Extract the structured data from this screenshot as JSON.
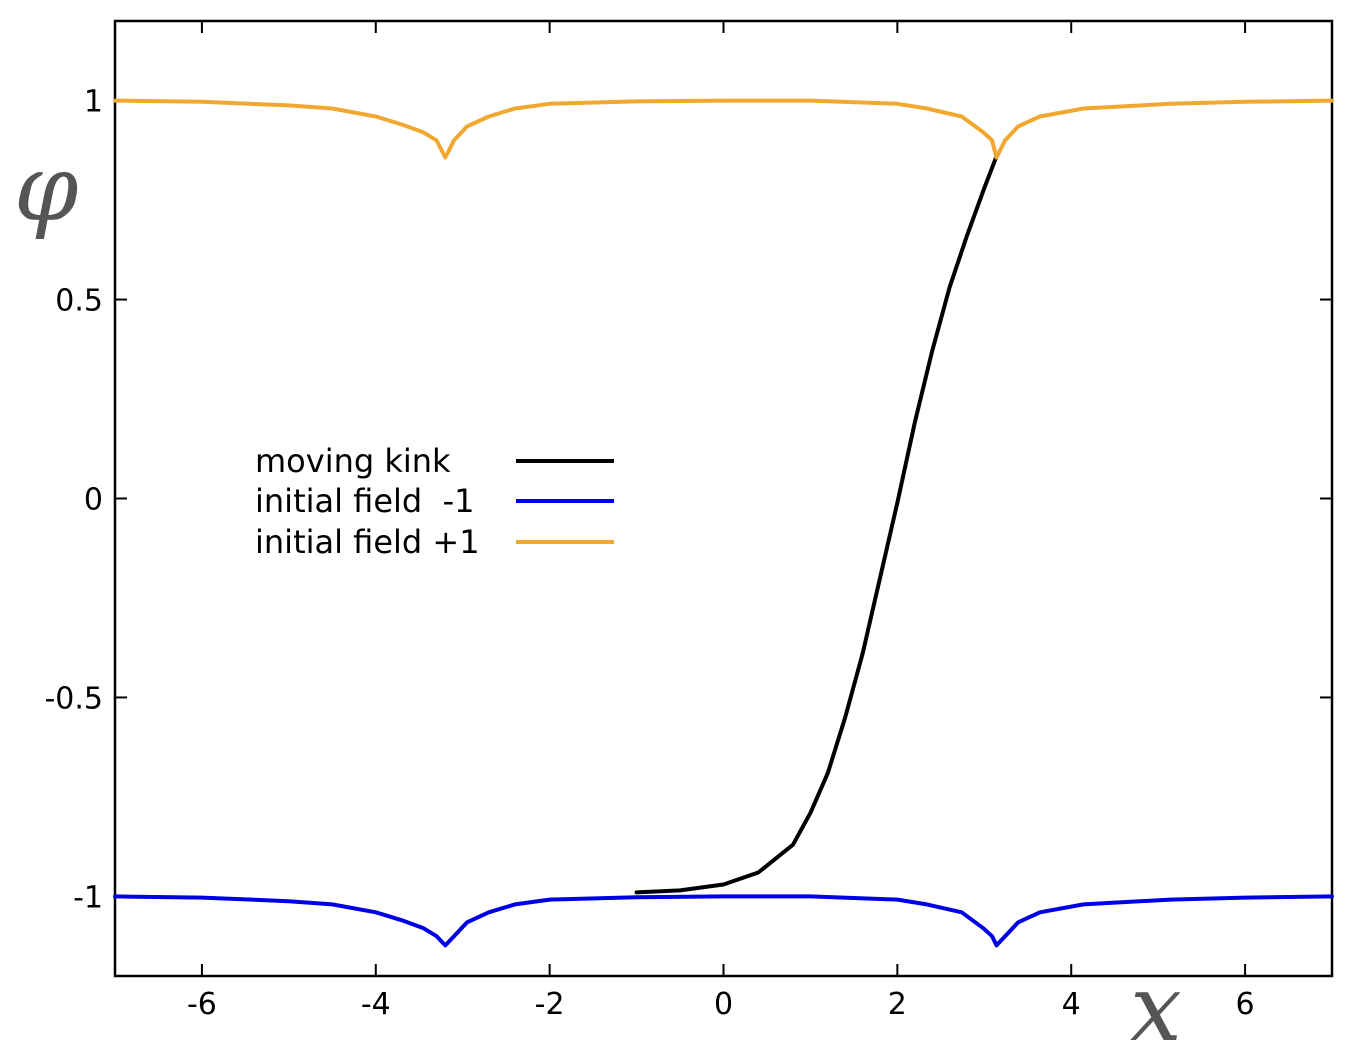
{
  "chart_data": {
    "type": "line",
    "title": "",
    "xlabel": "x",
    "ylabel": "φ",
    "xlim": [
      -7,
      7
    ],
    "ylim": [
      -1.2,
      1.2
    ],
    "xticks": [
      -6,
      -4,
      -2,
      0,
      2,
      4,
      6
    ],
    "yticks": [
      1,
      0.5,
      0,
      -0.5,
      -1
    ],
    "xtick_labels": [
      "-6",
      "-4",
      "-2",
      "0",
      "2",
      "4",
      "6"
    ],
    "ytick_labels": [
      "1",
      "0.5",
      "0",
      "-0.5",
      "-1"
    ],
    "grid": false,
    "legend_position": "middle-left",
    "series": [
      {
        "name": "moving kink",
        "color": "#000000",
        "x": [
          -1.0,
          -0.5,
          0.0,
          0.4,
          0.8,
          1.0,
          1.2,
          1.4,
          1.6,
          1.8,
          2.0,
          2.2,
          2.4,
          2.6,
          2.8,
          3.0,
          3.14
        ],
        "y": [
          -0.99,
          -0.985,
          -0.97,
          -0.94,
          -0.87,
          -0.79,
          -0.69,
          -0.55,
          -0.39,
          -0.2,
          -0.01,
          0.19,
          0.37,
          0.53,
          0.66,
          0.78,
          0.86
        ]
      },
      {
        "name": "initial field  -1",
        "color": "#0000e6",
        "x": [
          -7.0,
          -6.0,
          -5.0,
          -4.5,
          -4.0,
          -3.7,
          -3.45,
          -3.3,
          -3.2,
          -3.1,
          -2.95,
          -2.7,
          -2.4,
          -2.0,
          -1.0,
          0.0,
          1.0,
          2.0,
          2.34,
          2.74,
          2.99,
          3.09,
          3.14,
          3.24,
          3.39,
          3.64,
          4.14,
          5.14,
          6.0,
          7.0
        ],
        "y": [
          -1.0,
          -1.003,
          -1.012,
          -1.02,
          -1.04,
          -1.06,
          -1.08,
          -1.1,
          -1.123,
          -1.1,
          -1.065,
          -1.04,
          -1.02,
          -1.008,
          -1.002,
          -1.0,
          -1.0,
          -1.008,
          -1.02,
          -1.04,
          -1.08,
          -1.1,
          -1.123,
          -1.1,
          -1.065,
          -1.04,
          -1.02,
          -1.008,
          -1.003,
          -1.0
        ]
      },
      {
        "name": "initial field +1",
        "color": "#f0a830",
        "x": [
          -7.0,
          -6.0,
          -5.0,
          -4.5,
          -4.0,
          -3.7,
          -3.45,
          -3.3,
          -3.2,
          -3.1,
          -2.95,
          -2.7,
          -2.4,
          -2.0,
          -1.0,
          0.0,
          1.0,
          2.0,
          2.34,
          2.74,
          2.99,
          3.09,
          3.14,
          3.24,
          3.39,
          3.64,
          4.14,
          5.14,
          6.0,
          7.0
        ],
        "y": [
          1.0,
          0.997,
          0.988,
          0.98,
          0.96,
          0.94,
          0.92,
          0.9,
          0.857,
          0.9,
          0.935,
          0.96,
          0.98,
          0.992,
          0.998,
          1.0,
          1.0,
          0.992,
          0.98,
          0.96,
          0.92,
          0.9,
          0.857,
          0.9,
          0.935,
          0.96,
          0.98,
          0.992,
          0.997,
          1.0
        ]
      }
    ]
  }
}
